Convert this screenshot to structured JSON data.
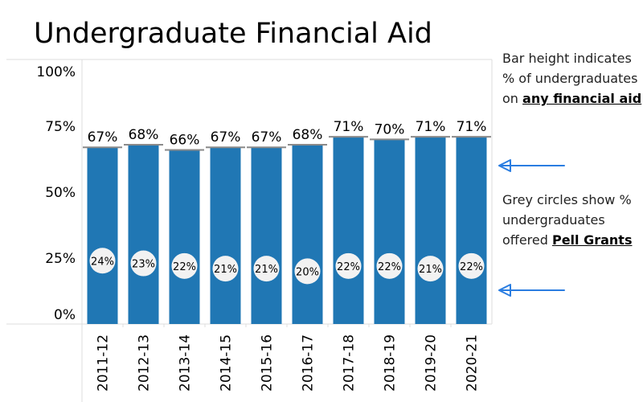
{
  "chart_data": {
    "type": "bar",
    "title": "Undergraduate Financial Aid",
    "categories": [
      "2011-12",
      "2012-13",
      "2013-14",
      "2014-15",
      "2015-16",
      "2016-17",
      "2017-18",
      "2018-19",
      "2019-20",
      "2020-21"
    ],
    "series": [
      {
        "name": "% undergraduates on any financial aid",
        "values": [
          67,
          68,
          66,
          67,
          67,
          68,
          71,
          70,
          71,
          71
        ],
        "color": "#2077b4"
      },
      {
        "name": "% undergraduates offered Pell Grants",
        "values": [
          24,
          23,
          22,
          21,
          21,
          20,
          22,
          22,
          21,
          22
        ],
        "color": "#f2f2f2",
        "mark": "circle"
      }
    ],
    "yticks": [
      "0%",
      "25%",
      "50%",
      "75%",
      "100%"
    ],
    "ylim": [
      0,
      100
    ],
    "xlabel": "",
    "ylabel": "",
    "grid": false
  },
  "notes": {
    "bar_note_prefix": "Bar height indicates % of undergraduates on ",
    "bar_note_bold": "any financial aid",
    "circle_note_prefix": "Grey circles show % undergraduates offered ",
    "circle_note_bold": "Pell Grants"
  },
  "colors": {
    "bar": "#2077b4",
    "circle": "#f2f2f2",
    "arrow": "#2a7de1",
    "ref_line": "#8a8a8a"
  }
}
